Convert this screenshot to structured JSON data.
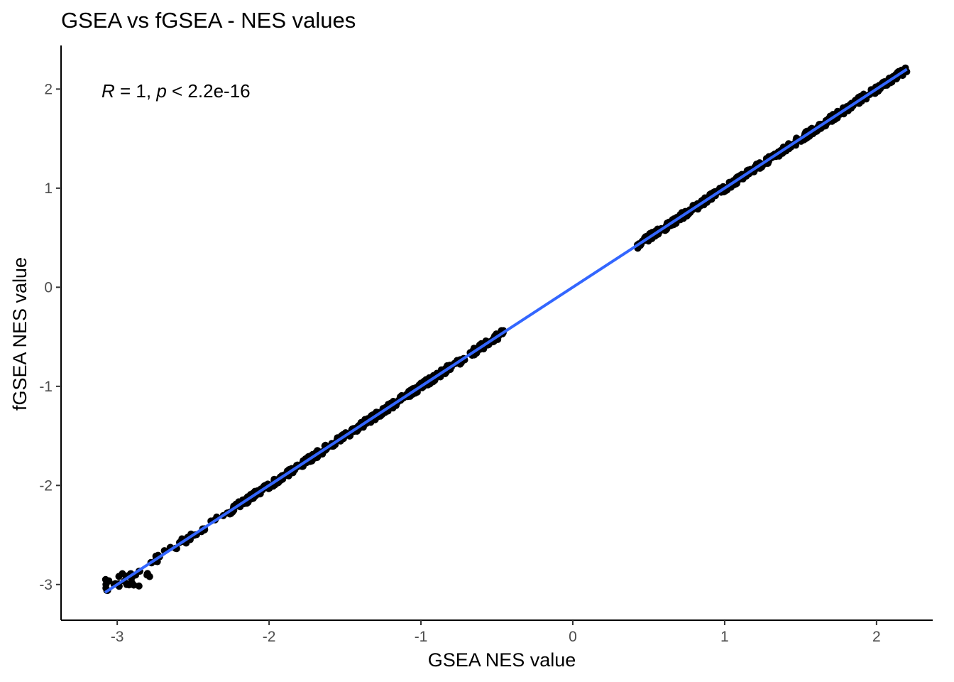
{
  "chart_data": {
    "type": "scatter",
    "title": "GSEA vs fGSEA - NES values",
    "xlabel": "GSEA NES value",
    "ylabel": "fGSEA NES value",
    "xlim": [
      -3.37,
      2.37
    ],
    "ylim": [
      -3.36,
      2.44
    ],
    "xticks": [
      -3,
      -2,
      -1,
      0,
      1,
      2
    ],
    "xtick_labels": [
      "-3",
      "-2",
      "-1",
      "0",
      "1",
      "2"
    ],
    "yticks": [
      -3,
      -2,
      -1,
      0,
      1,
      2
    ],
    "ytick_labels": [
      "-3",
      "-2",
      "-1",
      "0",
      "1",
      "2"
    ],
    "grid": false,
    "annotation": {
      "r_symbol": "R",
      "r_text": " = 1, ",
      "p_symbol": "p",
      "p_text": " < 2.2e-16"
    },
    "series": [
      {
        "type": "scatter",
        "color": "#000000",
        "segments": [
          {
            "x_from": -3.08,
            "x_to": -2.28,
            "count": 45
          },
          {
            "x_from": -2.28,
            "x_to": -0.45,
            "count": 420
          },
          {
            "x_from": 0.42,
            "x_to": 2.2,
            "count": 420
          }
        ]
      }
    ],
    "fit_line": {
      "color": "#3366ff",
      "slope": 1.0,
      "intercept": 0.0,
      "x_range": [
        -3.08,
        2.2
      ]
    }
  }
}
